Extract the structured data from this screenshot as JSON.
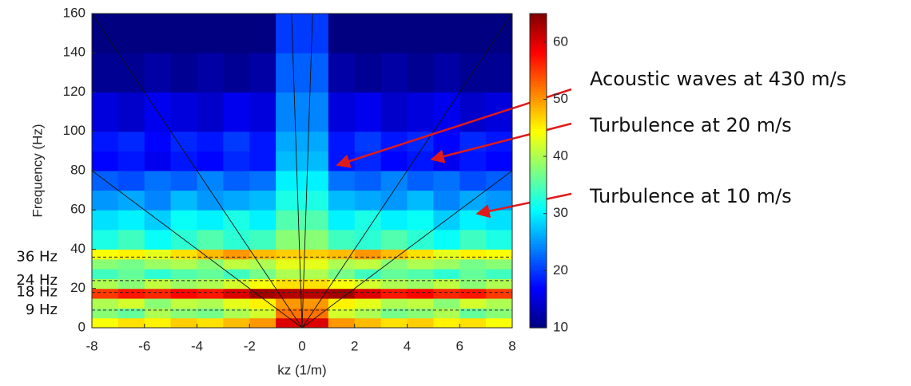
{
  "chart_data": {
    "type": "heatmap",
    "xlabel": "kz (1/m)",
    "ylabel": "Frequency (Hz)",
    "xlim": [
      -8,
      8
    ],
    "ylim": [
      0,
      160
    ],
    "xticks": [
      -8,
      -6,
      -4,
      -2,
      0,
      2,
      4,
      6,
      8
    ],
    "yticks": [
      0,
      20,
      40,
      60,
      80,
      100,
      120,
      140,
      160
    ],
    "colormap": "jet",
    "clim": [
      10,
      65
    ],
    "cticks": [
      10,
      20,
      30,
      40,
      50,
      60
    ],
    "x_edges": [
      -8,
      -7,
      -6,
      -5,
      -4,
      -3,
      -2,
      -1,
      0,
      1,
      2,
      3,
      4,
      5,
      6,
      7,
      8
    ],
    "y_edges": [
      0,
      5,
      10,
      15,
      20,
      25,
      30,
      35,
      40,
      50,
      60,
      70,
      80,
      90,
      100,
      120,
      140,
      160
    ],
    "z": [
      [
        44,
        46,
        45,
        47,
        46,
        48,
        50,
        60,
        60,
        50,
        48,
        46,
        47,
        45,
        46,
        44
      ],
      [
        38,
        36,
        40,
        38,
        37,
        40,
        42,
        52,
        52,
        42,
        40,
        37,
        38,
        40,
        36,
        38
      ],
      [
        40,
        42,
        38,
        41,
        40,
        43,
        45,
        50,
        50,
        45,
        43,
        40,
        41,
        38,
        42,
        40
      ],
      [
        55,
        57,
        56,
        58,
        57,
        60,
        63,
        62,
        62,
        63,
        60,
        57,
        58,
        56,
        57,
        55
      ],
      [
        40,
        38,
        41,
        39,
        40,
        42,
        44,
        46,
        46,
        44,
        42,
        40,
        39,
        41,
        38,
        40
      ],
      [
        34,
        36,
        33,
        35,
        36,
        34,
        37,
        40,
        40,
        37,
        34,
        36,
        35,
        33,
        36,
        34
      ],
      [
        38,
        37,
        39,
        40,
        38,
        41,
        40,
        43,
        43,
        40,
        41,
        38,
        40,
        39,
        37,
        38
      ],
      [
        44,
        45,
        43,
        46,
        48,
        50,
        48,
        47,
        47,
        48,
        50,
        48,
        46,
        43,
        45,
        44
      ],
      [
        32,
        34,
        31,
        33,
        35,
        33,
        34,
        38,
        38,
        34,
        33,
        35,
        33,
        31,
        34,
        32
      ],
      [
        29,
        30,
        28,
        31,
        30,
        32,
        30,
        35,
        35,
        30,
        32,
        30,
        31,
        28,
        30,
        29
      ],
      [
        25,
        26,
        24,
        27,
        25,
        26,
        27,
        32,
        32,
        27,
        26,
        25,
        27,
        24,
        26,
        25
      ],
      [
        22,
        21,
        23,
        22,
        24,
        22,
        23,
        30,
        30,
        23,
        22,
        24,
        22,
        23,
        21,
        22
      ],
      [
        17,
        18,
        16,
        18,
        17,
        19,
        18,
        27,
        27,
        18,
        19,
        17,
        18,
        16,
        18,
        17
      ],
      [
        18,
        19,
        17,
        19,
        18,
        20,
        18,
        26,
        26,
        18,
        20,
        18,
        19,
        17,
        19,
        18
      ],
      [
        15,
        14,
        16,
        15,
        14,
        16,
        15,
        24,
        24,
        15,
        16,
        14,
        15,
        16,
        14,
        15
      ],
      [
        11,
        11,
        12,
        11,
        12,
        11,
        12,
        22,
        22,
        12,
        11,
        12,
        11,
        12,
        11,
        11
      ],
      [
        10,
        10,
        10,
        10,
        10,
        10,
        10,
        20,
        20,
        10,
        10,
        10,
        10,
        10,
        10,
        10
      ]
    ],
    "dispersion_lines": [
      {
        "x": [
          -8,
          0,
          8
        ],
        "y": [
          160,
          0,
          160
        ]
      },
      {
        "x": [
          -8,
          0,
          8
        ],
        "y": [
          80,
          0,
          80
        ]
      },
      {
        "x": [
          -0.4,
          0,
          0.4
        ],
        "y": [
          160,
          0,
          160
        ]
      }
    ],
    "reference_lines": [
      {
        "value": 36,
        "label": "36 Hz"
      },
      {
        "value": 24,
        "label": "24 Hz"
      },
      {
        "value": 18,
        "label": "18 Hz"
      },
      {
        "value": 9,
        "label": "9 Hz"
      }
    ],
    "annotations": [
      "Acoustic waves at 430 m/s",
      "Turbulence at 20 m/s",
      "Turbulence at 10 m/s"
    ]
  }
}
